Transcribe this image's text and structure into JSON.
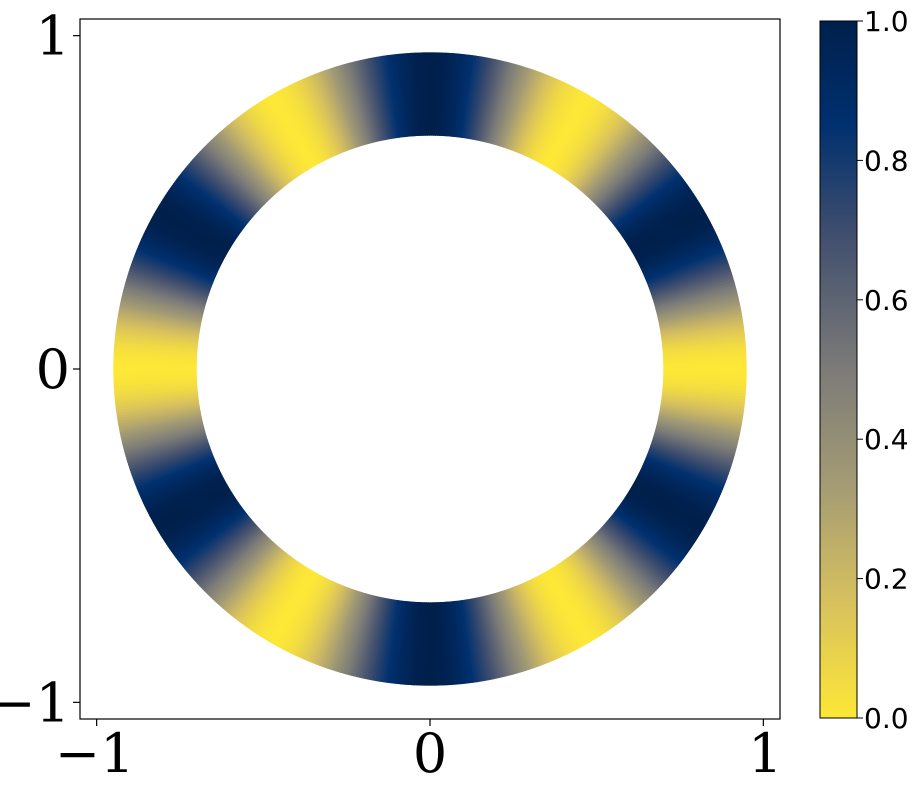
{
  "chart_data": {
    "type": "heatmap",
    "description_kind": "annulus colored by intensity",
    "ring": {
      "inner_radius": 0.7,
      "outer_radius": 0.95
    },
    "intensity_function": "sin^2(3*theta + pi/2) mapped so peaks at 0,60,120,180,240,300 deg from vertical",
    "peak_angles_deg_from_top_dark": [
      0,
      60,
      120,
      180,
      240,
      300
    ],
    "peak_angles_deg_from_top_light": [
      30,
      90,
      150,
      210,
      270,
      330
    ],
    "xlim": [
      -1.05,
      1.05
    ],
    "ylim": [
      -1.05,
      1.05
    ],
    "x_ticks": [
      {
        "value": -1,
        "label": "−1"
      },
      {
        "value": 0,
        "label": "0"
      },
      {
        "value": 1,
        "label": "1"
      }
    ],
    "y_ticks": [
      {
        "value": -1,
        "label": "−1"
      },
      {
        "value": 0,
        "label": "0"
      },
      {
        "value": 1,
        "label": "1"
      }
    ],
    "colorbar": {
      "colormap": "cividis_r",
      "range": [
        0.0,
        1.0
      ],
      "ticks": [
        {
          "value": 0.0,
          "label": "0.0"
        },
        {
          "value": 0.2,
          "label": "0.2"
        },
        {
          "value": 0.4,
          "label": "0.4"
        },
        {
          "value": 0.6,
          "label": "0.6"
        },
        {
          "value": 0.8,
          "label": "0.8"
        },
        {
          "value": 1.0,
          "label": "1.0"
        }
      ],
      "colors": [
        "#fde737",
        "#d9c25d",
        "#a59c74",
        "#7c7b78",
        "#3e4d6e",
        "#00306f",
        "#00204c"
      ]
    },
    "title": "",
    "xlabel": "",
    "ylabel": ""
  }
}
